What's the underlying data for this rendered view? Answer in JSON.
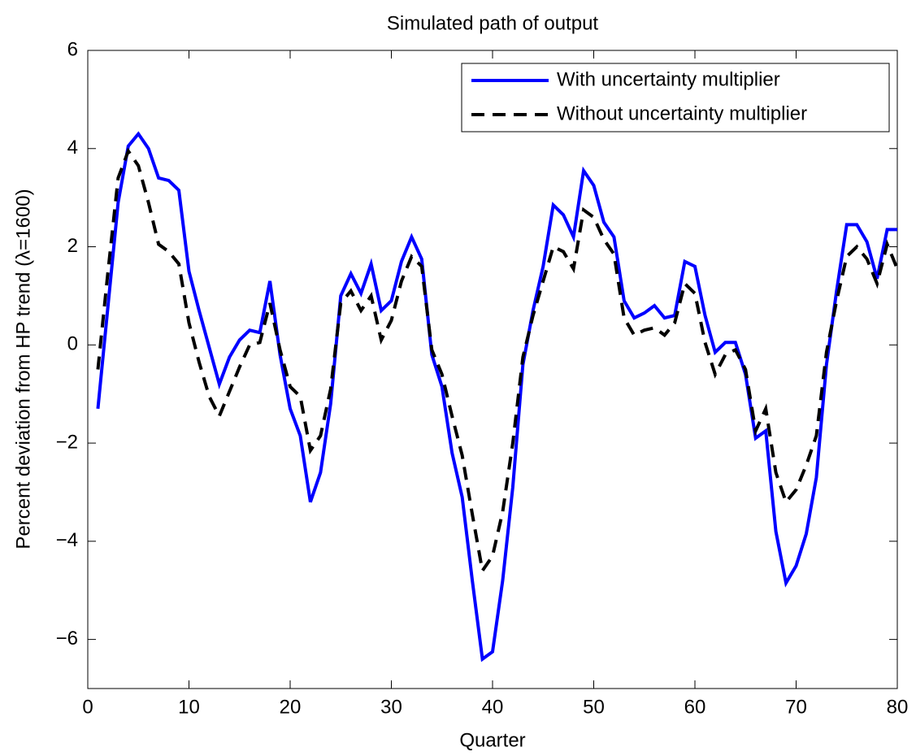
{
  "chart_data": {
    "type": "line",
    "title": "Simulated path of output",
    "x_label": "Quarter",
    "y_label": "Percent deviation from HP trend (λ=1600)",
    "x": [
      1,
      2,
      3,
      4,
      5,
      6,
      7,
      8,
      9,
      10,
      11,
      12,
      13,
      14,
      15,
      16,
      17,
      18,
      19,
      20,
      21,
      22,
      23,
      24,
      25,
      26,
      27,
      28,
      29,
      30,
      31,
      32,
      33,
      34,
      35,
      36,
      37,
      38,
      39,
      40,
      41,
      42,
      43,
      44,
      45,
      46,
      47,
      48,
      49,
      50,
      51,
      52,
      53,
      54,
      55,
      56,
      57,
      58,
      59,
      60,
      61,
      62,
      63,
      64,
      65,
      66,
      67,
      68,
      69,
      70,
      71,
      72,
      73,
      74,
      75,
      76,
      77,
      78,
      79,
      80
    ],
    "series": [
      {
        "name": "With uncertainty multiplier",
        "color": "#0000ff",
        "dash": false,
        "values": [
          -1.3,
          0.8,
          2.9,
          4.05,
          4.3,
          4.0,
          3.4,
          3.35,
          3.15,
          1.5,
          0.7,
          -0.05,
          -0.8,
          -0.25,
          0.1,
          0.3,
          0.25,
          1.3,
          -0.2,
          -1.3,
          -1.85,
          -3.2,
          -2.6,
          -1.2,
          1.0,
          1.45,
          1.05,
          1.65,
          0.7,
          0.9,
          1.7,
          2.2,
          1.75,
          -0.2,
          -0.85,
          -2.2,
          -3.1,
          -4.8,
          -6.4,
          -6.25,
          -4.8,
          -2.9,
          -0.4,
          0.7,
          1.6,
          2.85,
          2.65,
          2.2,
          3.55,
          3.25,
          2.5,
          2.2,
          0.9,
          0.55,
          0.65,
          0.8,
          0.55,
          0.6,
          1.7,
          1.6,
          0.6,
          -0.15,
          0.05,
          0.05,
          -0.6,
          -1.9,
          -1.75,
          -3.8,
          -4.85,
          -4.5,
          -3.85,
          -2.7,
          -0.4,
          1.1,
          2.45,
          2.45,
          2.1,
          1.35,
          2.35,
          2.35
        ]
      },
      {
        "name": "Without uncertainty multiplier",
        "color": "#000000",
        "dash": true,
        "values": [
          -0.5,
          1.5,
          3.4,
          3.95,
          3.65,
          2.9,
          2.05,
          1.9,
          1.65,
          0.45,
          -0.35,
          -1.05,
          -1.45,
          -0.95,
          -0.45,
          0.0,
          0.05,
          0.85,
          -0.1,
          -0.85,
          -1.05,
          -2.15,
          -1.85,
          -0.9,
          0.85,
          1.1,
          0.7,
          1.0,
          0.1,
          0.5,
          1.3,
          1.8,
          1.6,
          -0.1,
          -0.6,
          -1.45,
          -2.25,
          -3.45,
          -4.6,
          -4.3,
          -3.4,
          -2.0,
          -0.25,
          0.6,
          1.3,
          2.0,
          1.9,
          1.55,
          2.75,
          2.6,
          2.15,
          1.85,
          0.55,
          0.2,
          0.3,
          0.35,
          0.2,
          0.45,
          1.25,
          1.05,
          0.05,
          -0.6,
          -0.2,
          -0.1,
          -0.5,
          -1.75,
          -1.3,
          -2.6,
          -3.2,
          -2.95,
          -2.45,
          -1.85,
          -0.15,
          0.9,
          1.8,
          2.0,
          1.75,
          1.25,
          2.05,
          1.55
        ]
      }
    ],
    "xlim": [
      0,
      80
    ],
    "xticks": [
      0,
      10,
      20,
      30,
      40,
      50,
      60,
      70,
      80
    ],
    "ylim": [
      -7,
      6
    ],
    "yticks": [
      {
        "value": -6,
        "label": "−6"
      },
      {
        "value": -4,
        "label": "−4"
      },
      {
        "value": -2,
        "label": "−2"
      },
      0,
      2,
      4,
      6
    ],
    "grid": false,
    "legend": "upper right"
  }
}
